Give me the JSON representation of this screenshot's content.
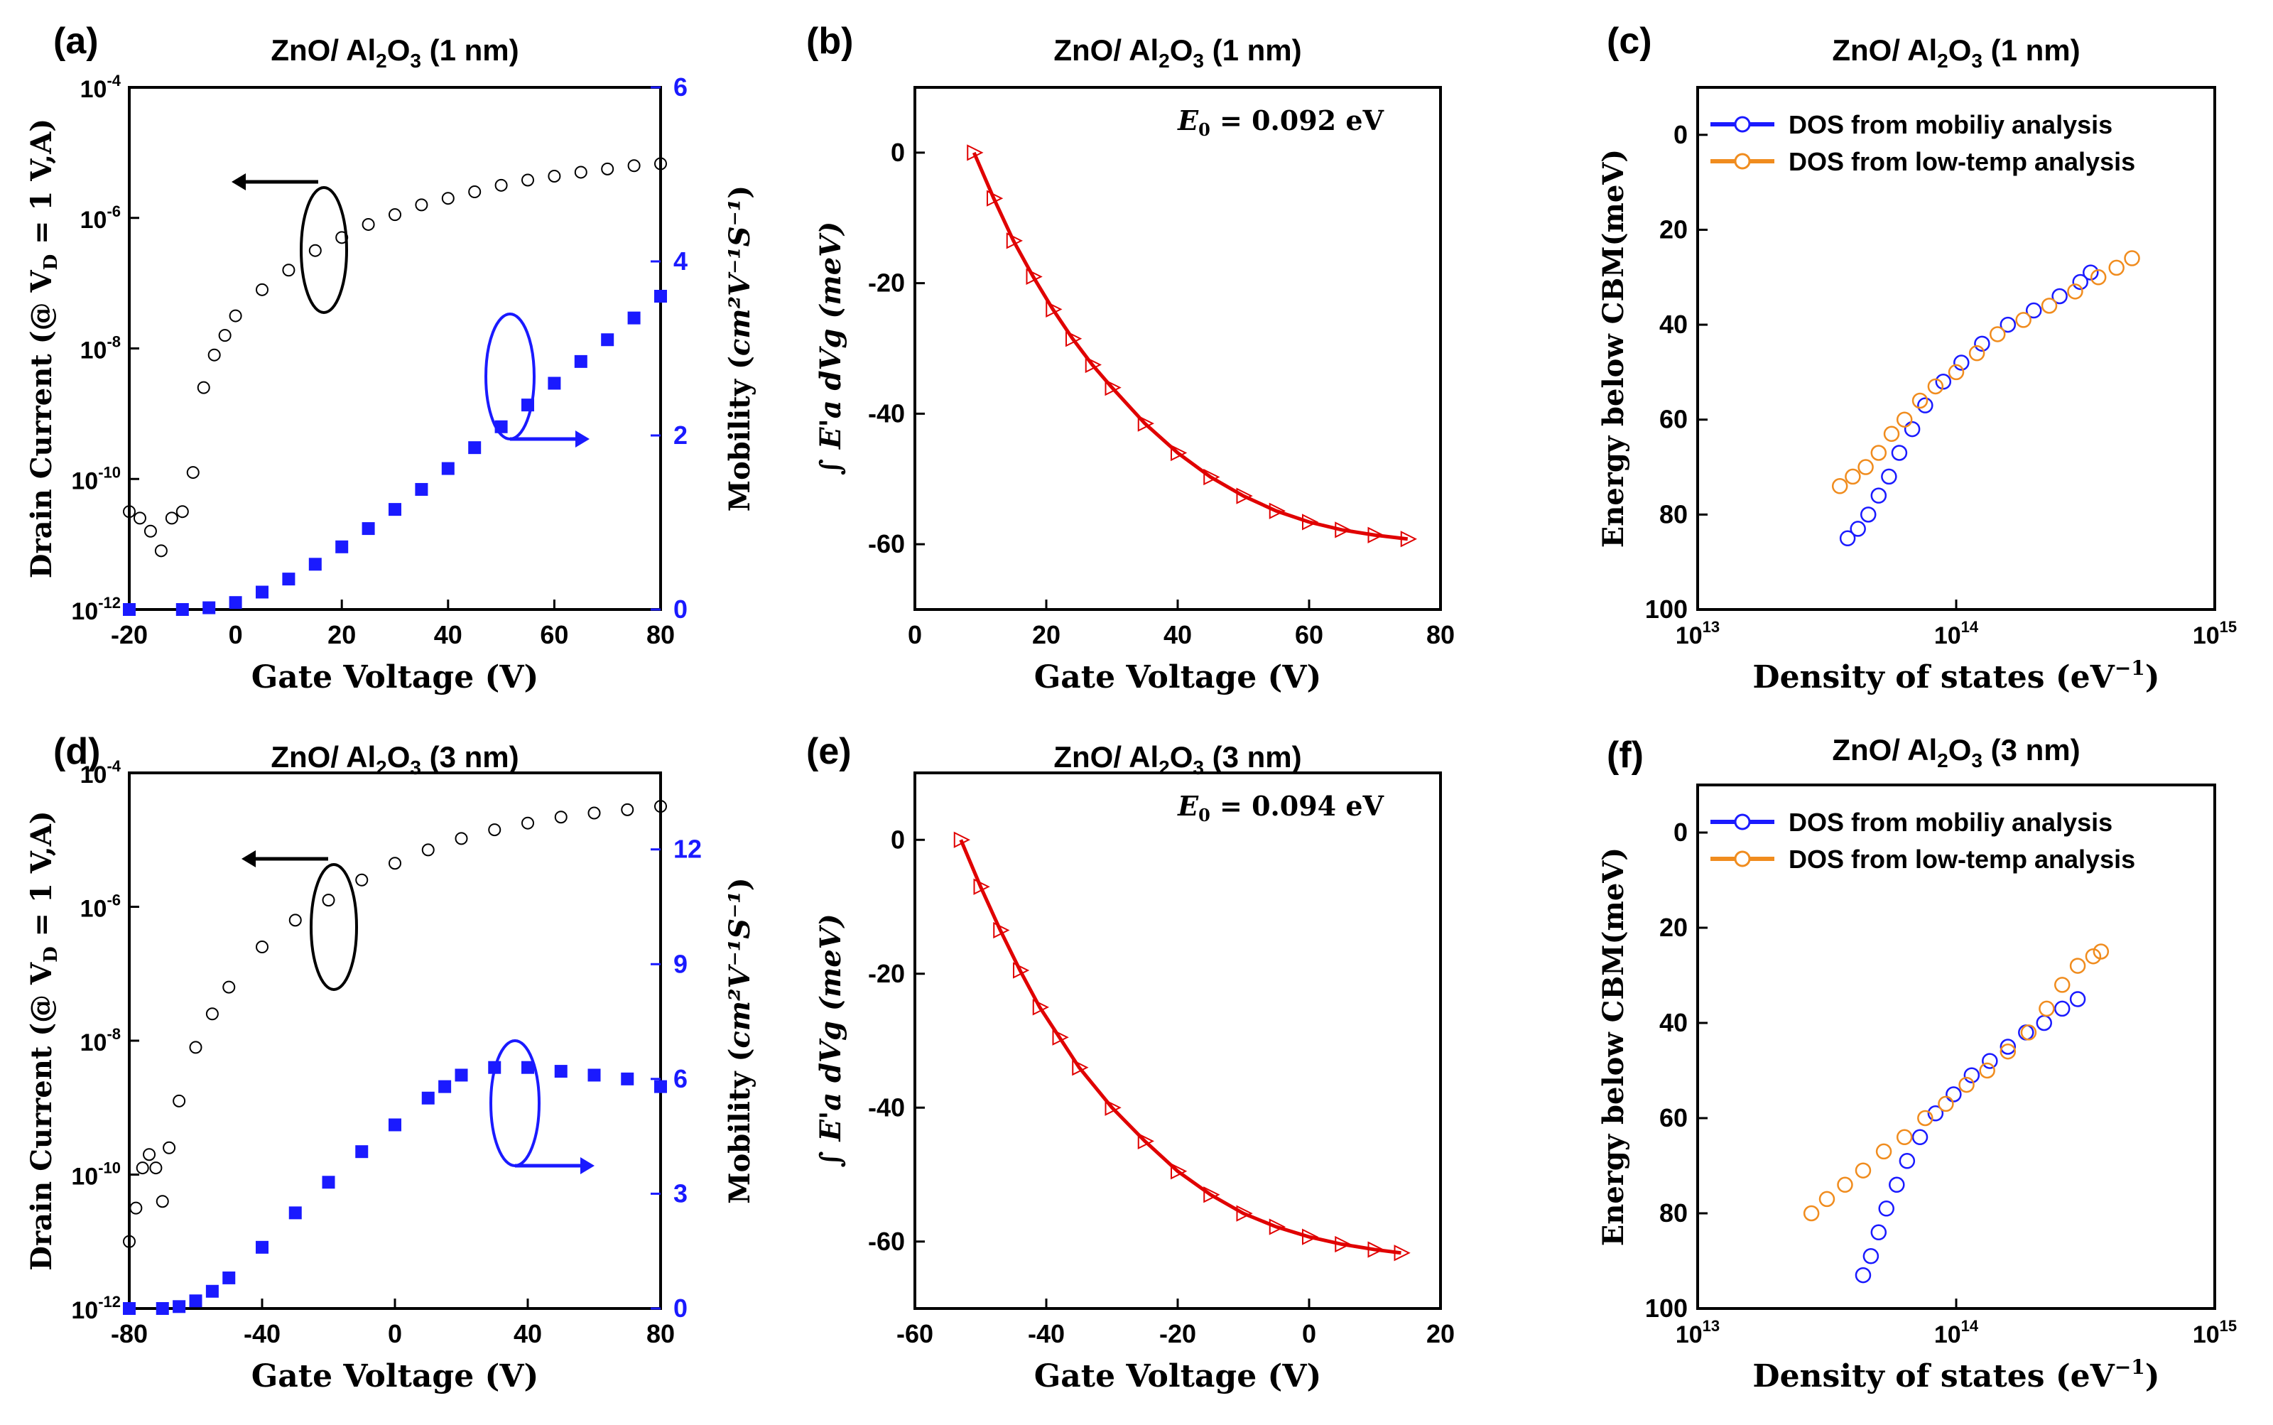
{
  "chart_data": [
    {
      "panel": "a",
      "panel_label": "(a)",
      "type": "scatter",
      "title_main": "ZnO/ Al",
      "title_sub": "2",
      "title_mid": "O",
      "title_sub2": "3",
      "title_end": " (1 nm)",
      "xlabel": "Gate Voltage (V)",
      "ylabel_left": "Drain Current (@ V",
      "ylabel_left_sub": "D",
      "ylabel_left_end": " = 1 V,A)",
      "ylabel_right": "Mobility (",
      "ylabel_right_units": "cm²V⁻¹S⁻¹",
      "ylabel_right_end": ")",
      "xlim": [
        -20,
        80
      ],
      "xticks": [
        "-20",
        "0",
        "20",
        "40",
        "60",
        "80"
      ],
      "ylim_left_log": [
        -12,
        -4
      ],
      "yticks_left": [
        "10",
        "10",
        "10",
        "10",
        "10"
      ],
      "yticks_left_exp": [
        "-12",
        "-10",
        "-8",
        "-6",
        "-4"
      ],
      "ylim_right": [
        0,
        6
      ],
      "yticks_right": [
        "0",
        "2",
        "4",
        "6"
      ],
      "right_color": "#1a1aff",
      "series_current": {
        "name": "Drain Current",
        "x": [
          -20,
          -18,
          -16,
          -14,
          -12,
          -10,
          -8,
          -6,
          -4,
          -2,
          0,
          5,
          10,
          15,
          20,
          25,
          30,
          35,
          40,
          45,
          50,
          55,
          60,
          65,
          70,
          75,
          80
        ],
        "log10_y": [
          -10.5,
          -10.6,
          -10.8,
          -11.1,
          -10.6,
          -10.5,
          -9.9,
          -8.6,
          -8.1,
          -7.8,
          -7.5,
          -7.1,
          -6.8,
          -6.5,
          -6.3,
          -6.1,
          -5.95,
          -5.8,
          -5.7,
          -5.6,
          -5.5,
          -5.42,
          -5.36,
          -5.3,
          -5.25,
          -5.2,
          -5.17
        ]
      },
      "series_mobility": {
        "name": "Mobility",
        "x": [
          -20,
          -10,
          -5,
          0,
          5,
          10,
          15,
          20,
          25,
          30,
          35,
          40,
          45,
          50,
          55,
          60,
          65,
          70,
          75,
          80
        ],
        "y": [
          0,
          0,
          0.02,
          0.08,
          0.2,
          0.35,
          0.52,
          0.72,
          0.93,
          1.15,
          1.38,
          1.62,
          1.86,
          2.1,
          2.35,
          2.6,
          2.85,
          3.1,
          3.35,
          3.6
        ]
      }
    },
    {
      "panel": "b",
      "panel_label": "(b)",
      "type": "line",
      "title_main": "ZnO/ Al",
      "title_sub": "2",
      "title_mid": "O",
      "title_sub2": "3",
      "title_end": " (1 nm)",
      "xlabel": "Gate Voltage (V)",
      "ylabel": "∫ E'a dVg (meV)",
      "annotation": "E",
      "annotation_sub": "0",
      "annotation_end": " = 0.092 eV",
      "xlim": [
        0,
        80
      ],
      "xticks": [
        "0",
        "20",
        "40",
        "60",
        "80"
      ],
      "ylim": [
        -70,
        10
      ],
      "yticks": [
        "-60",
        "-40",
        "-20",
        "0"
      ],
      "color": "#e00000",
      "series": {
        "name": "Integral",
        "x": [
          9,
          12,
          15,
          18,
          21,
          24,
          27,
          30,
          35,
          40,
          45,
          50,
          55,
          60,
          65,
          70,
          75
        ],
        "y": [
          0,
          -7,
          -13.5,
          -19,
          -24,
          -28.5,
          -32.5,
          -36,
          -41.5,
          -46,
          -49.7,
          -52.6,
          -54.9,
          -56.6,
          -57.8,
          -58.6,
          -59.2
        ]
      }
    },
    {
      "panel": "c",
      "panel_label": "(c)",
      "type": "scatter",
      "title_main": "ZnO/ Al",
      "title_sub": "2",
      "title_mid": "O",
      "title_sub2": "3",
      "title_end": " (1 nm)",
      "xlabel": "Density of states (eV",
      "xlabel_sup": "−1",
      "xlabel_end": ")",
      "ylabel": "Energy below CBM(meV)",
      "xlim_log": [
        13,
        15
      ],
      "xticks": [
        "10",
        "10",
        "10"
      ],
      "xticks_exp": [
        "13",
        "14",
        "15"
      ],
      "ylim": [
        100,
        -10
      ],
      "yticks": [
        "0",
        "20",
        "40",
        "60",
        "80",
        "100"
      ],
      "legend": [
        "DOS from mobiliy analysis",
        "DOS from low-temp analysis"
      ],
      "series": [
        {
          "name": "DOS from mobiliy analysis",
          "color": "#1a1aff",
          "log10_x": [
            13.58,
            13.62,
            13.66,
            13.7,
            13.74,
            13.78,
            13.83,
            13.88,
            13.95,
            14.02,
            14.1,
            14.2,
            14.3,
            14.4,
            14.48,
            14.52
          ],
          "y": [
            85,
            83,
            80,
            76,
            72,
            67,
            62,
            57,
            52,
            48,
            44,
            40,
            37,
            34,
            31,
            29
          ]
        },
        {
          "name": "DOS from low-temp analysis",
          "color": "#f08c1e",
          "log10_x": [
            13.55,
            13.6,
            13.65,
            13.7,
            13.75,
            13.8,
            13.86,
            13.92,
            14.0,
            14.08,
            14.16,
            14.26,
            14.36,
            14.46,
            14.55,
            14.62,
            14.68
          ],
          "y": [
            74,
            72,
            70,
            67,
            63,
            60,
            56,
            53,
            50,
            46,
            42,
            39,
            36,
            33,
            30,
            28,
            26
          ]
        }
      ]
    },
    {
      "panel": "d",
      "panel_label": "(d)",
      "type": "scatter",
      "title_main": "ZnO/ Al",
      "title_sub": "2",
      "title_mid": "O",
      "title_sub2": "3",
      "title_end": " (3 nm)",
      "xlabel": "Gate Voltage (V)",
      "ylabel_left": "Drain Current (@ V",
      "ylabel_left_sub": "D",
      "ylabel_left_end": " = 1 V,A)",
      "ylabel_right": "Mobility (",
      "ylabel_right_units": "cm²V⁻¹S⁻¹",
      "ylabel_right_end": ")",
      "xlim": [
        -80,
        80
      ],
      "xticks": [
        "-80",
        "-40",
        "0",
        "40",
        "80"
      ],
      "ylim_left_log": [
        -12,
        -4
      ],
      "yticks_left": [
        "10",
        "10",
        "10",
        "10",
        "10"
      ],
      "yticks_left_exp": [
        "-12",
        "-10",
        "-8",
        "-6",
        "-4"
      ],
      "ylim_right": [
        0,
        14
      ],
      "yticks_right": [
        "0",
        "3",
        "6",
        "9",
        "12"
      ],
      "right_color": "#1a1aff",
      "series_current": {
        "name": "Drain Current",
        "x": [
          -80,
          -78,
          -76,
          -74,
          -72,
          -70,
          -68,
          -65,
          -60,
          -55,
          -50,
          -40,
          -30,
          -20,
          -10,
          0,
          10,
          20,
          30,
          40,
          50,
          60,
          70,
          80
        ],
        "log10_y": [
          -11,
          -10.5,
          -9.9,
          -9.7,
          -9.9,
          -10.4,
          -9.6,
          -8.9,
          -8.1,
          -7.6,
          -7.2,
          -6.6,
          -6.2,
          -5.9,
          -5.6,
          -5.35,
          -5.15,
          -4.98,
          -4.85,
          -4.75,
          -4.66,
          -4.6,
          -4.55,
          -4.5
        ]
      },
      "series_mobility": {
        "name": "Mobility",
        "x": [
          -80,
          -70,
          -65,
          -60,
          -55,
          -50,
          -40,
          -30,
          -20,
          -10,
          0,
          10,
          15,
          20,
          30,
          40,
          50,
          60,
          70,
          80
        ],
        "y": [
          0,
          0,
          0.05,
          0.2,
          0.45,
          0.8,
          1.6,
          2.5,
          3.3,
          4.1,
          4.8,
          5.5,
          5.8,
          6.1,
          6.3,
          6.3,
          6.2,
          6.1,
          6.0,
          5.8
        ]
      }
    },
    {
      "panel": "e",
      "panel_label": "(e)",
      "type": "line",
      "title_main": "ZnO/ Al",
      "title_sub": "2",
      "title_mid": "O",
      "title_sub2": "3",
      "title_end": " (3 nm)",
      "xlabel": "Gate Voltage (V)",
      "ylabel": "∫ E'a dVg (meV)",
      "annotation": "E",
      "annotation_sub": "0",
      "annotation_end": " = 0.094  eV",
      "xlim": [
        -60,
        20
      ],
      "xticks": [
        "-60",
        "-40",
        "-20",
        "0",
        "20"
      ],
      "ylim": [
        -70,
        10
      ],
      "yticks": [
        "-60",
        "-40",
        "-20",
        "0"
      ],
      "color": "#e00000",
      "series": {
        "name": "Integral",
        "x": [
          -53,
          -50,
          -47,
          -44,
          -41,
          -38,
          -35,
          -30,
          -25,
          -20,
          -15,
          -10,
          -5,
          0,
          5,
          10,
          14
        ],
        "y": [
          0,
          -7,
          -13.5,
          -19.5,
          -25,
          -29.5,
          -34,
          -40,
          -45,
          -49.5,
          -53,
          -55.8,
          -57.8,
          -59.3,
          -60.4,
          -61.2,
          -61.7
        ]
      }
    },
    {
      "panel": "f",
      "panel_label": "(f)",
      "type": "scatter",
      "title_main": "ZnO/ Al",
      "title_sub": "2",
      "title_mid": "O",
      "title_sub2": "3",
      "title_end": " (3 nm)",
      "xlabel": "Density of states (eV",
      "xlabel_sup": "−1",
      "xlabel_end": ")",
      "ylabel": "Energy below CBM(meV)",
      "xlim_log": [
        13,
        15
      ],
      "xticks": [
        "10",
        "10",
        "10"
      ],
      "xticks_exp": [
        "13",
        "14",
        "15"
      ],
      "ylim": [
        100,
        -10
      ],
      "yticks": [
        "0",
        "20",
        "40",
        "60",
        "80",
        "100"
      ],
      "legend": [
        "DOS from mobiliy analysis",
        "DOS from low-temp analysis"
      ],
      "series": [
        {
          "name": "DOS from mobiliy analysis",
          "color": "#1a1aff",
          "log10_x": [
            13.64,
            13.67,
            13.7,
            13.73,
            13.77,
            13.81,
            13.86,
            13.92,
            13.99,
            14.06,
            14.13,
            14.2,
            14.27,
            14.34,
            14.41,
            14.47
          ],
          "y": [
            93,
            89,
            84,
            79,
            74,
            69,
            64,
            59,
            55,
            51,
            48,
            45,
            42,
            40,
            37,
            35
          ]
        },
        {
          "name": "DOS from low-temp analysis",
          "color": "#f08c1e",
          "log10_x": [
            13.44,
            13.5,
            13.57,
            13.64,
            13.72,
            13.8,
            13.88,
            13.96,
            14.04,
            14.12,
            14.2,
            14.28,
            14.35,
            14.41,
            14.47,
            14.53,
            14.56
          ],
          "y": [
            80,
            77,
            74,
            71,
            67,
            64,
            60,
            57,
            53,
            50,
            46,
            42,
            37,
            32,
            28,
            26,
            25
          ]
        }
      ]
    }
  ]
}
